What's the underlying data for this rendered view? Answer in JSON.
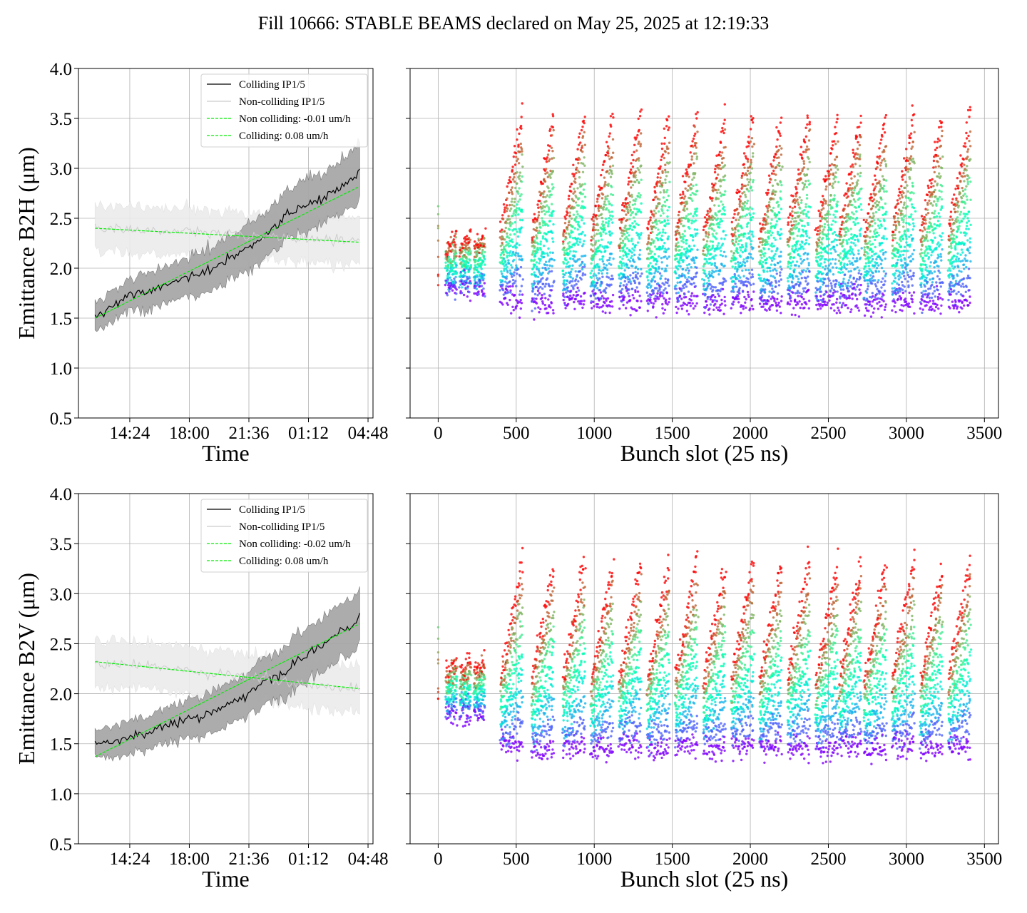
{
  "figure": {
    "title": "Fill 10666: STABLE BEAMS declared on May 25, 2025 at 12:19:33"
  },
  "chart_data": [
    {
      "type": "line",
      "panel": "top-left",
      "xlabel": "Time",
      "ylabel": "Emittance B2H (μm)",
      "x_tick_labels": [
        "14:24",
        "18:00",
        "21:36",
        "01:12",
        "04:48"
      ],
      "x_range_hours": [
        11.3,
        29.1
      ],
      "ylim": [
        0.5,
        4.0
      ],
      "y_ticks": [
        "0.5",
        "1.0",
        "1.5",
        "2.0",
        "2.5",
        "3.0",
        "3.5",
        "4.0"
      ],
      "grid": true,
      "legend_position": "top-right",
      "legend": [
        "Colliding IP1/5",
        "Non-colliding IP1/5",
        "Non colliding: -0.01 um/h",
        "Colliding: 0.08 um/h"
      ],
      "series": [
        {
          "name": "Colliding IP1/5",
          "color": "#000000",
          "band_color": "#a8a8a8",
          "x_hours": [
            12.3,
            14.0,
            16.0,
            18.0,
            20.0,
            22.0,
            24.0,
            26.0,
            28.0,
            28.3
          ],
          "values": [
            1.5,
            1.7,
            1.8,
            1.9,
            2.05,
            2.25,
            2.55,
            2.7,
            2.9,
            3.0
          ],
          "band_halfwidth": 0.15
        },
        {
          "name": "Non-colliding IP1/5",
          "color": "#cccccc",
          "band_color": "#ececec",
          "x_hours": [
            12.3,
            15.0,
            18.0,
            21.0,
            24.0,
            27.0,
            28.3
          ],
          "values": [
            2.4,
            2.38,
            2.36,
            2.33,
            2.3,
            2.27,
            2.26
          ],
          "band_halfwidth": 0.2
        },
        {
          "name": "Non colliding: -0.01 um/h",
          "color": "#00ee00",
          "dashed": true,
          "x_hours": [
            12.3,
            28.3
          ],
          "values": [
            2.4,
            2.26
          ]
        },
        {
          "name": "Colliding: 0.08 um/h",
          "color": "#00ee00",
          "dashed": true,
          "x_hours": [
            12.3,
            28.3
          ],
          "values": [
            1.5,
            2.82
          ]
        }
      ]
    },
    {
      "type": "scatter",
      "panel": "top-right",
      "xlabel": "Bunch slot (25 ns)",
      "ylabel": "",
      "xlim": [
        -180,
        3590
      ],
      "x_ticks": [
        "0",
        "500",
        "1000",
        "1500",
        "2000",
        "2500",
        "3000",
        "3500"
      ],
      "ylim": [
        0.5,
        4.0
      ],
      "grid": true,
      "colormap": "rainbow (violet = start of fill, red = end of fill)",
      "bunch_trains_start": [
        50,
        140,
        230,
        400,
        600,
        800,
        980,
        1160,
        1340,
        1520,
        1700,
        1880,
        2060,
        2240,
        2420,
        2570,
        2730,
        2910,
        3090,
        3270
      ],
      "emittance_at_fill_start": 1.65,
      "emittance_at_fill_end": 3.0
    },
    {
      "type": "line",
      "panel": "bottom-left",
      "xlabel": "Time",
      "ylabel": "Emittance B2V (μm)",
      "x_tick_labels": [
        "14:24",
        "18:00",
        "21:36",
        "01:12",
        "04:48"
      ],
      "x_range_hours": [
        11.3,
        29.1
      ],
      "ylim": [
        0.5,
        4.0
      ],
      "y_ticks": [
        "0.5",
        "1.0",
        "1.5",
        "2.0",
        "2.5",
        "3.0",
        "3.5",
        "4.0"
      ],
      "grid": true,
      "legend_position": "top-right",
      "legend": [
        "Colliding IP1/5",
        "Non-colliding IP1/5",
        "Non colliding: -0.02 um/h",
        "Colliding: 0.08 um/h"
      ],
      "series": [
        {
          "name": "Colliding IP1/5",
          "color": "#000000",
          "band_color": "#a8a8a8",
          "x_hours": [
            12.3,
            14.0,
            16.0,
            18.0,
            20.0,
            22.0,
            24.0,
            26.0,
            28.0,
            28.3
          ],
          "values": [
            1.5,
            1.55,
            1.65,
            1.75,
            1.85,
            2.05,
            2.25,
            2.5,
            2.7,
            2.78
          ],
          "band_halfwidth": 0.15
        },
        {
          "name": "Non-colliding IP1/5",
          "color": "#cccccc",
          "band_color": "#ececec",
          "x_hours": [
            12.3,
            15.0,
            18.0,
            21.0,
            24.0,
            27.0,
            28.3
          ],
          "values": [
            2.3,
            2.28,
            2.22,
            2.17,
            2.12,
            2.07,
            2.05
          ],
          "band_halfwidth": 0.2
        },
        {
          "name": "Non colliding: -0.02 um/h",
          "color": "#00ee00",
          "dashed": true,
          "x_hours": [
            12.3,
            28.3
          ],
          "values": [
            2.32,
            2.05
          ]
        },
        {
          "name": "Colliding: 0.08 um/h",
          "color": "#00ee00",
          "dashed": true,
          "x_hours": [
            12.3,
            28.3
          ],
          "values": [
            1.37,
            2.7
          ]
        }
      ]
    },
    {
      "type": "scatter",
      "panel": "bottom-right",
      "xlabel": "Bunch slot (25 ns)",
      "ylabel": "",
      "xlim": [
        -180,
        3590
      ],
      "x_ticks": [
        "0",
        "500",
        "1000",
        "1500",
        "2000",
        "2500",
        "3000",
        "3500"
      ],
      "ylim": [
        0.5,
        4.0
      ],
      "grid": true,
      "colormap": "rainbow (violet = start of fill, red = end of fill)",
      "bunch_trains_start": [
        50,
        140,
        230,
        400,
        600,
        800,
        980,
        1160,
        1340,
        1520,
        1700,
        1880,
        2060,
        2240,
        2420,
        2570,
        2730,
        2910,
        3090,
        3270
      ],
      "emittance_at_fill_start": 1.45,
      "emittance_at_fill_end": 2.8
    }
  ]
}
